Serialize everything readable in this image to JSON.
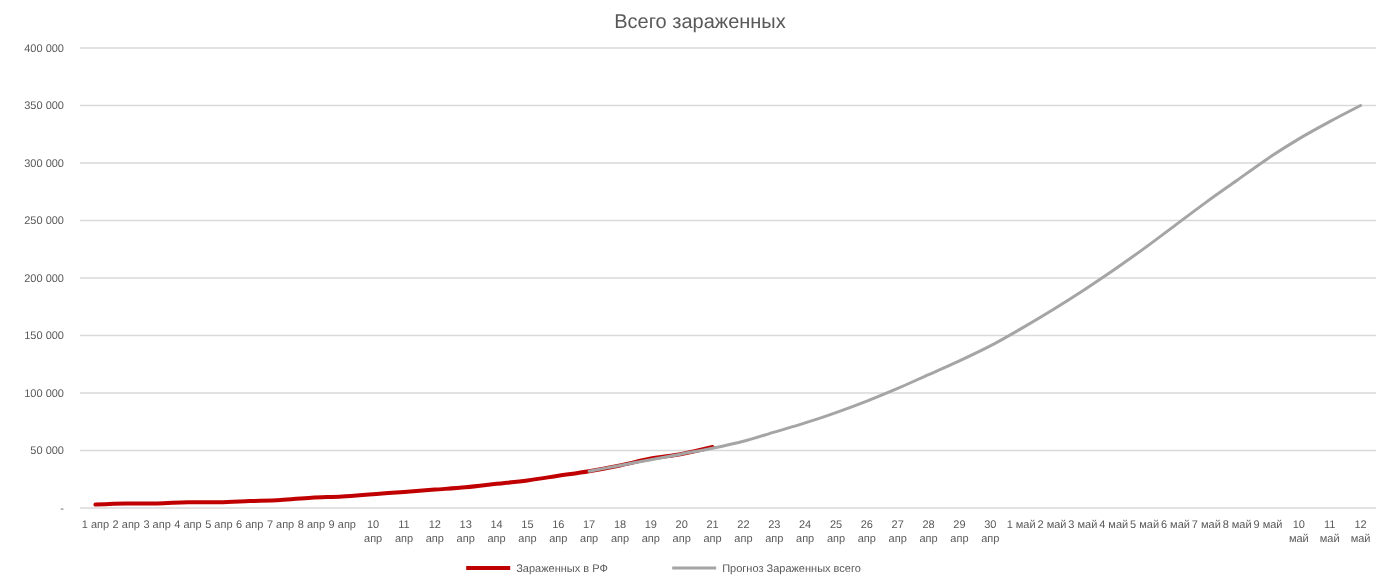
{
  "chart_data": {
    "type": "line",
    "title": "Всего зараженных",
    "categories": [
      "1 апр",
      "2 апр",
      "3 апр",
      "4 апр",
      "5 апр",
      "6 апр",
      "7 апр",
      "8 апр",
      "9 апр",
      "10 апр",
      "11 апр",
      "12 апр",
      "13 апр",
      "14 апр",
      "15 апр",
      "16 апр",
      "17 апр",
      "18 апр",
      "19 апр",
      "20 апр",
      "21 апр",
      "22 апр",
      "23 апр",
      "24 апр",
      "25 апр",
      "26 апр",
      "27 апр",
      "28 апр",
      "29 апр",
      "30 апр",
      "1 май",
      "2 май",
      "3 май",
      "4 май",
      "5 май",
      "6 май",
      "7 май",
      "8 май",
      "9 май",
      "10 май",
      "11 май",
      "12 май"
    ],
    "series": [
      {
        "name": "Зараженных в РФ",
        "color": "#c00000",
        "values": [
          3000,
          4000,
          4000,
          5000,
          5000,
          6000,
          7000,
          9000,
          10000,
          12000,
          14000,
          16000,
          18000,
          21000,
          24000,
          28000,
          32000,
          37000,
          43000,
          47000,
          53000,
          null,
          null,
          null,
          null,
          null,
          null,
          null,
          null,
          null,
          null,
          null,
          null,
          null,
          null,
          null,
          null,
          null,
          null,
          null,
          null,
          null
        ]
      },
      {
        "name": "Прогноз Зараженных всего",
        "color": "#a5a5a5",
        "values": [
          null,
          null,
          null,
          null,
          null,
          null,
          null,
          null,
          null,
          null,
          null,
          null,
          null,
          null,
          null,
          null,
          32000,
          37000,
          42000,
          47000,
          52000,
          58000,
          66000,
          74000,
          83000,
          93000,
          104000,
          116000,
          128000,
          141000,
          156000,
          172000,
          189000,
          207000,
          226000,
          246000,
          266000,
          285000,
          304000,
          321000,
          336000,
          350000
        ]
      }
    ],
    "ylim": [
      0,
      400000
    ],
    "yticks": [
      {
        "value": 0,
        "label": "-"
      },
      {
        "value": 50000,
        "label": "50 000"
      },
      {
        "value": 100000,
        "label": "100 000"
      },
      {
        "value": 150000,
        "label": "150 000"
      },
      {
        "value": 200000,
        "label": "200 000"
      },
      {
        "value": 250000,
        "label": "250 000"
      },
      {
        "value": 300000,
        "label": "300 000"
      },
      {
        "value": 350000,
        "label": "350 000"
      },
      {
        "value": 400000,
        "label": "400 000"
      }
    ],
    "grid": "y",
    "legend": "bottom",
    "marker": "none",
    "line_style": "solid"
  }
}
